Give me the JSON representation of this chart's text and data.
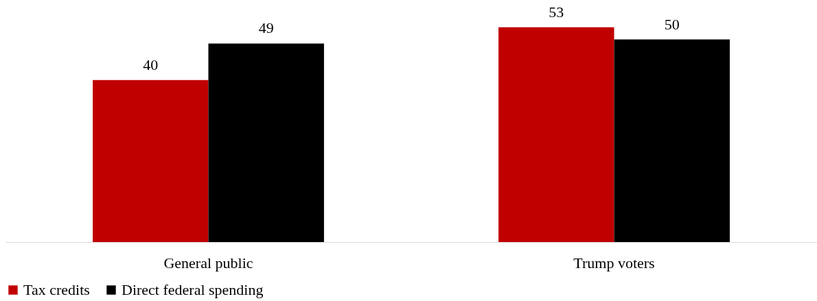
{
  "chart_data": {
    "type": "bar",
    "categories": [
      "General public",
      "Trump voters"
    ],
    "series": [
      {
        "name": "Tax credits",
        "color": "#c00000",
        "values": [
          40,
          53
        ]
      },
      {
        "name": "Direct federal spending",
        "color": "#000000",
        "values": [
          49,
          50
        ]
      }
    ],
    "data_labels": true,
    "legend": "bottom",
    "grid": false
  }
}
